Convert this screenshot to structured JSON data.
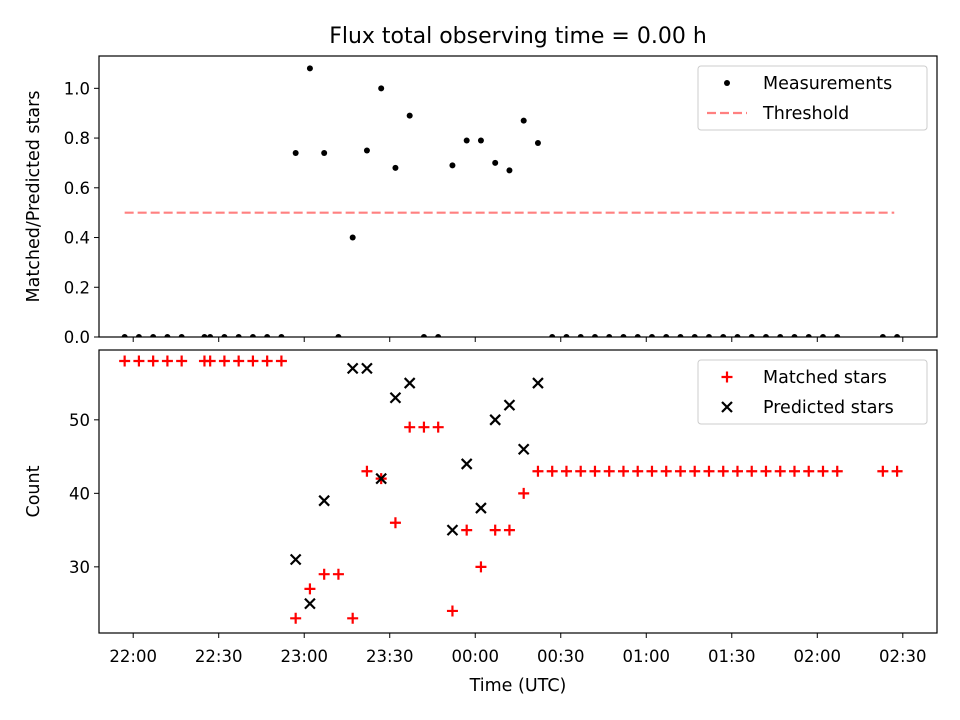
{
  "chart_data": [
    {
      "type": "scatter",
      "title": "Flux total observing time = 0.00 h",
      "xlabel": "",
      "ylabel": "Matched/Predicted stars",
      "xlim": [
        "21:48",
        "02:42"
      ],
      "ylim": [
        0,
        1.13
      ],
      "yticks": [
        0.0,
        0.2,
        0.4,
        0.6,
        0.8,
        1.0
      ],
      "ytick_labels": [
        "0.0",
        "0.2",
        "0.4",
        "0.6",
        "0.8",
        "1.0"
      ],
      "legend_position": "top-right",
      "series": [
        {
          "name": "Measurements",
          "kind": "points",
          "marker": "dot",
          "color": "#000000",
          "points": [
            [
              "21:57",
              0.0
            ],
            [
              "22:02",
              0.0
            ],
            [
              "22:07",
              0.0
            ],
            [
              "22:12",
              0.0
            ],
            [
              "22:17",
              0.0
            ],
            [
              "22:25",
              0.0
            ],
            [
              "22:27",
              0.0
            ],
            [
              "22:32",
              0.0
            ],
            [
              "22:37",
              0.0
            ],
            [
              "22:42",
              0.0
            ],
            [
              "22:47",
              0.0
            ],
            [
              "22:52",
              0.0
            ],
            [
              "22:57",
              0.74
            ],
            [
              "23:02",
              1.08
            ],
            [
              "23:07",
              0.74
            ],
            [
              "23:12",
              0.0
            ],
            [
              "23:17",
              0.4
            ],
            [
              "23:22",
              0.75
            ],
            [
              "23:27",
              1.0
            ],
            [
              "23:32",
              0.68
            ],
            [
              "23:37",
              0.89
            ],
            [
              "23:42",
              0.0
            ],
            [
              "23:47",
              0.0
            ],
            [
              "23:52",
              0.69
            ],
            [
              "23:57",
              0.79
            ],
            [
              "00:02",
              0.79
            ],
            [
              "00:07",
              0.7
            ],
            [
              "00:12",
              0.67
            ],
            [
              "00:17",
              0.87
            ],
            [
              "00:22",
              0.78
            ],
            [
              "00:27",
              0.0
            ],
            [
              "00:32",
              0.0
            ],
            [
              "00:37",
              0.0
            ],
            [
              "00:42",
              0.0
            ],
            [
              "00:47",
              0.0
            ],
            [
              "00:52",
              0.0
            ],
            [
              "00:57",
              0.0
            ],
            [
              "01:02",
              0.0
            ],
            [
              "01:07",
              0.0
            ],
            [
              "01:12",
              0.0
            ],
            [
              "01:17",
              0.0
            ],
            [
              "01:22",
              0.0
            ],
            [
              "01:27",
              0.0
            ],
            [
              "01:32",
              0.0
            ],
            [
              "01:37",
              0.0
            ],
            [
              "01:42",
              0.0
            ],
            [
              "01:47",
              0.0
            ],
            [
              "01:52",
              0.0
            ],
            [
              "01:57",
              0.0
            ],
            [
              "02:02",
              0.0
            ],
            [
              "02:07",
              0.0
            ],
            [
              "02:23",
              0.0
            ],
            [
              "02:28",
              0.0
            ]
          ]
        },
        {
          "name": "Threshold",
          "kind": "line",
          "dash": "dashed",
          "color": "#ff8080",
          "points": [
            [
              "21:57",
              0.5
            ],
            [
              "02:27",
              0.5
            ]
          ]
        }
      ]
    },
    {
      "type": "scatter",
      "title": "",
      "xlabel": "Time (UTC)",
      "ylabel": "Count",
      "xlim": [
        "21:48",
        "02:42"
      ],
      "ylim": [
        21,
        59.5
      ],
      "yticks": [
        30,
        40,
        50
      ],
      "ytick_labels": [
        "30",
        "40",
        "50"
      ],
      "xticks": [
        "22:00",
        "22:30",
        "23:00",
        "23:30",
        "00:00",
        "00:30",
        "01:00",
        "01:30",
        "02:00",
        "02:30"
      ],
      "legend_position": "top-right",
      "series": [
        {
          "name": "Matched stars",
          "kind": "points",
          "marker": "plus",
          "color": "#ff0000",
          "points": [
            [
              "21:57",
              58
            ],
            [
              "22:02",
              58
            ],
            [
              "22:07",
              58
            ],
            [
              "22:12",
              58
            ],
            [
              "22:17",
              58
            ],
            [
              "22:25",
              58
            ],
            [
              "22:27",
              58
            ],
            [
              "22:32",
              58
            ],
            [
              "22:37",
              58
            ],
            [
              "22:42",
              58
            ],
            [
              "22:47",
              58
            ],
            [
              "22:52",
              58
            ],
            [
              "22:57",
              23
            ],
            [
              "23:02",
              27
            ],
            [
              "23:07",
              29
            ],
            [
              "23:12",
              29
            ],
            [
              "23:17",
              23
            ],
            [
              "23:22",
              43
            ],
            [
              "23:27",
              42
            ],
            [
              "23:32",
              36
            ],
            [
              "23:37",
              49
            ],
            [
              "23:42",
              49
            ],
            [
              "23:47",
              49
            ],
            [
              "23:52",
              24
            ],
            [
              "23:57",
              35
            ],
            [
              "00:02",
              30
            ],
            [
              "00:07",
              35
            ],
            [
              "00:12",
              35
            ],
            [
              "00:17",
              40
            ],
            [
              "00:22",
              43
            ],
            [
              "00:27",
              43
            ],
            [
              "00:32",
              43
            ],
            [
              "00:37",
              43
            ],
            [
              "00:42",
              43
            ],
            [
              "00:47",
              43
            ],
            [
              "00:52",
              43
            ],
            [
              "00:57",
              43
            ],
            [
              "01:02",
              43
            ],
            [
              "01:07",
              43
            ],
            [
              "01:12",
              43
            ],
            [
              "01:17",
              43
            ],
            [
              "01:22",
              43
            ],
            [
              "01:27",
              43
            ],
            [
              "01:32",
              43
            ],
            [
              "01:37",
              43
            ],
            [
              "01:42",
              43
            ],
            [
              "01:47",
              43
            ],
            [
              "01:52",
              43
            ],
            [
              "01:57",
              43
            ],
            [
              "02:02",
              43
            ],
            [
              "02:07",
              43
            ],
            [
              "02:23",
              43
            ],
            [
              "02:28",
              43
            ]
          ]
        },
        {
          "name": "Predicted stars",
          "kind": "points",
          "marker": "x",
          "color": "#000000",
          "points": [
            [
              "22:57",
              31
            ],
            [
              "23:02",
              25
            ],
            [
              "23:07",
              39
            ],
            [
              "23:17",
              57
            ],
            [
              "23:22",
              57
            ],
            [
              "23:27",
              42
            ],
            [
              "23:32",
              53
            ],
            [
              "23:37",
              55
            ],
            [
              "23:52",
              35
            ],
            [
              "23:57",
              44
            ],
            [
              "00:02",
              38
            ],
            [
              "00:07",
              50
            ],
            [
              "00:12",
              52
            ],
            [
              "00:17",
              46
            ],
            [
              "00:22",
              55
            ]
          ]
        }
      ]
    }
  ]
}
